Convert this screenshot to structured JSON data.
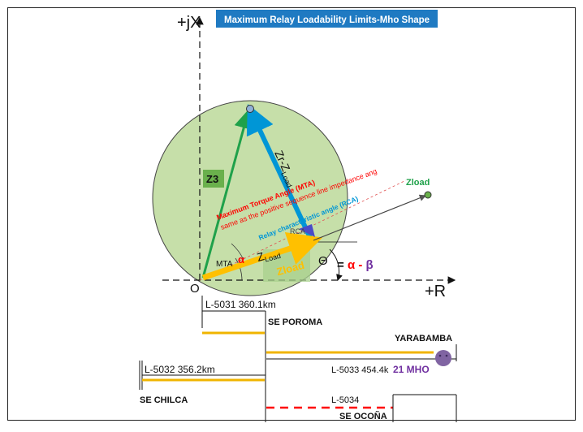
{
  "diagram": {
    "title": "Maximum Relay Loadability Limits-Mho Shape",
    "axis_jx": "+jX",
    "axis_r": "+R",
    "origin": "O",
    "z3_label": "Z3",
    "zr_zload_main": "Zr-Z",
    "zr_zload_sub": "Load",
    "zload_main": "Z",
    "zload_sub": "Load",
    "zload_box": "Zload",
    "zload_point": "Zload",
    "mta_line1": "Maximum Torque Angle (MTA)",
    "mta_line2": "same as the positive sequence line impedance ang",
    "rca_text": "Relay characteristic angle (RCA)",
    "rca_short": "RCA",
    "mta_short": "MTA",
    "alpha": "α",
    "theta": "Θ",
    "alpha_minus_beta": "= α - β"
  },
  "one_line": {
    "l5031": "L-5031 360.1km",
    "se_poroma": "SE POROMA",
    "yarabamba": "YARABAMBA",
    "l5032": "L-5032 356.2km",
    "l5033": "L-5033 454.4k",
    "mho21": "21 MHO",
    "se_chilca": "SE CHILCA",
    "l5034": "L-5034",
    "se_ocona": "SE OCOÑA"
  },
  "colors": {
    "circle_fill": "#c6dfa9",
    "green_vec": "#1fa14a",
    "blue_vec": "#0096d6",
    "orange_vec": "#ffc000",
    "title_bg": "#1f7ac2",
    "red": "#ff0000",
    "purple": "#7030a0",
    "relay_purple": "#8064a2",
    "yellow_line": "#f0b400"
  }
}
